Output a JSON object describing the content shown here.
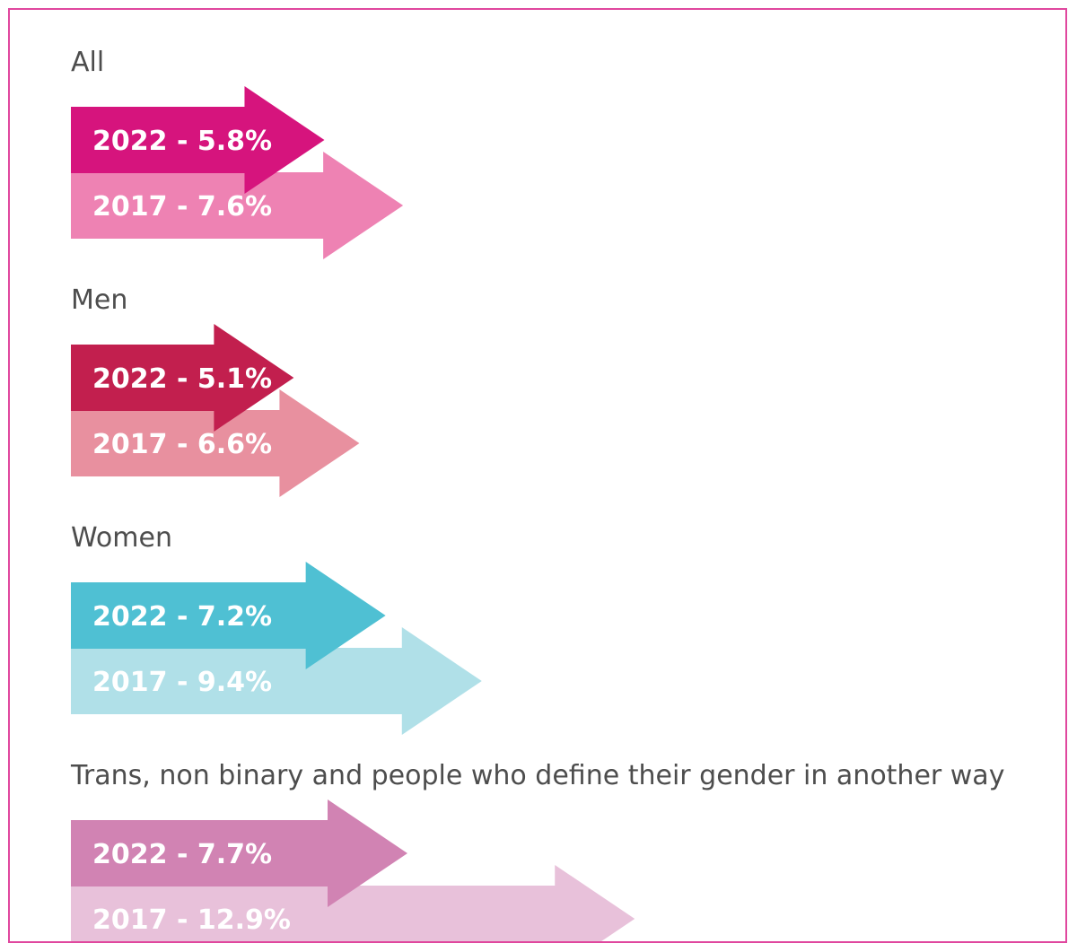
{
  "chart_data": {
    "type": "bar",
    "orientation": "horizontal",
    "unit": "%",
    "series_years": [
      "2022",
      "2017"
    ],
    "groups": [
      {
        "label": "All",
        "values": [
          5.8,
          7.6
        ],
        "bar_labels": [
          "2022 - 5.8%",
          "2017 - 7.6%"
        ],
        "colors": [
          "#d6147d",
          "#ee82b3"
        ]
      },
      {
        "label": "Men",
        "values": [
          5.1,
          6.6
        ],
        "bar_labels": [
          "2022 - 5.1%",
          "2017 - 6.6%"
        ],
        "colors": [
          "#c21f4e",
          "#e8909f"
        ]
      },
      {
        "label": "Women",
        "values": [
          7.2,
          9.4
        ],
        "bar_labels": [
          "2022 - 7.2%",
          "2017 - 9.4%"
        ],
        "colors": [
          "#4fc0d3",
          "#b0e0e8"
        ]
      },
      {
        "label": "Trans, non binary and people who define their gender in another way",
        "values": [
          7.7,
          12.9
        ],
        "bar_labels": [
          "2022 - 7.7%",
          "2017 - 12.9%"
        ],
        "colors": [
          "#d183b3",
          "#e8c1da"
        ]
      }
    ]
  },
  "colors": {
    "frame_border": "#e0479e",
    "label_text": "#4d4d4d",
    "bar_text": "#ffffff"
  }
}
